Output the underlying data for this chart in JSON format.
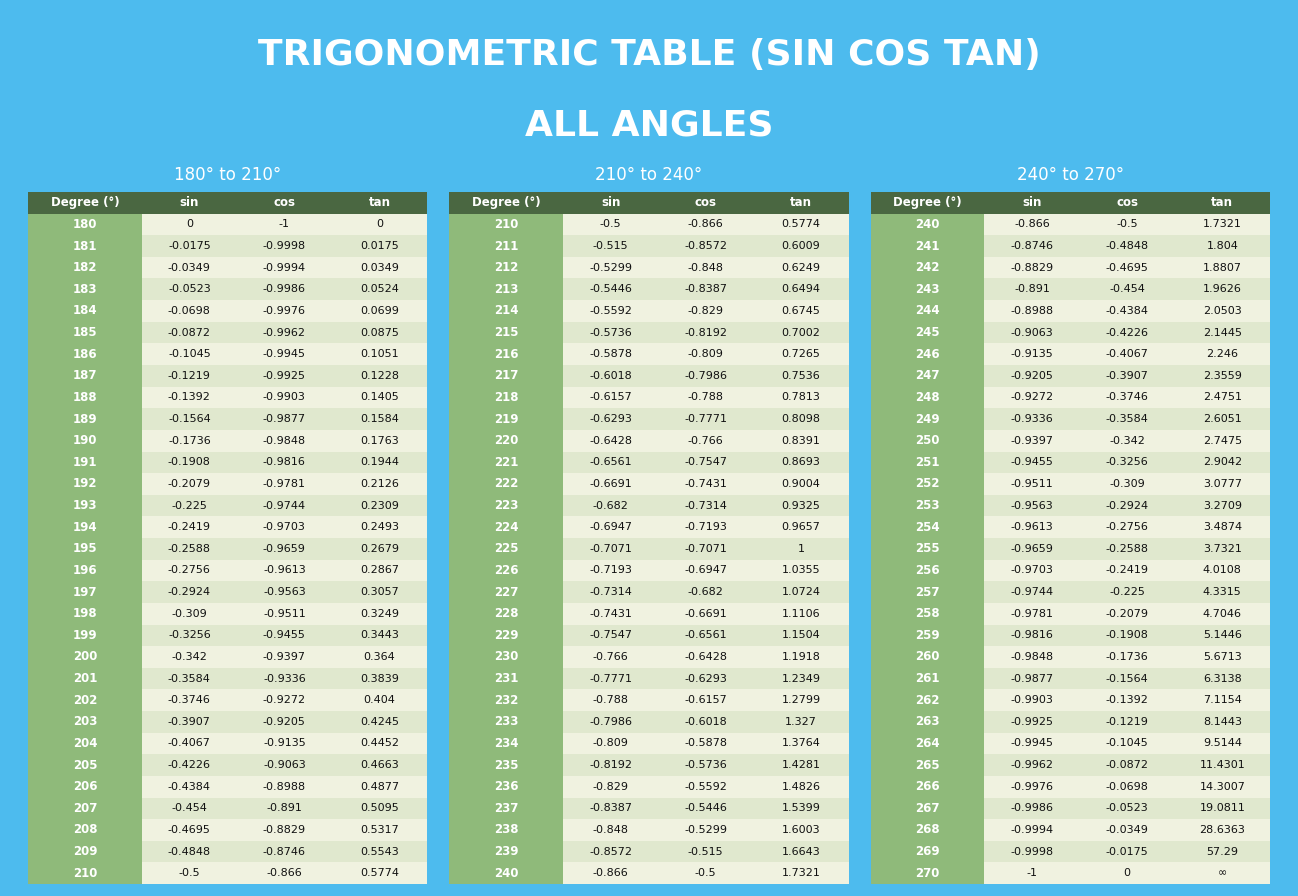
{
  "title_line1": "TRIGONOMETRIC TABLE (SIN COS TAN)",
  "title_line2": "ALL ANGLES",
  "bg_color": "#4DBBEE",
  "header_bg": "#4A6741",
  "col1_bg": "#8FBA7A",
  "row_even_bg": "#F0F2E0",
  "row_odd_bg": "#E0E8CE",
  "tables": [
    {
      "subtitle": "180° to 210°",
      "headers": [
        "Degree (°)",
        "sin",
        "cos",
        "tan"
      ],
      "rows": [
        [
          "180",
          "0",
          "-1",
          "0"
        ],
        [
          "181",
          "-0.0175",
          "-0.9998",
          "0.0175"
        ],
        [
          "182",
          "-0.0349",
          "-0.9994",
          "0.0349"
        ],
        [
          "183",
          "-0.0523",
          "-0.9986",
          "0.0524"
        ],
        [
          "184",
          "-0.0698",
          "-0.9976",
          "0.0699"
        ],
        [
          "185",
          "-0.0872",
          "-0.9962",
          "0.0875"
        ],
        [
          "186",
          "-0.1045",
          "-0.9945",
          "0.1051"
        ],
        [
          "187",
          "-0.1219",
          "-0.9925",
          "0.1228"
        ],
        [
          "188",
          "-0.1392",
          "-0.9903",
          "0.1405"
        ],
        [
          "189",
          "-0.1564",
          "-0.9877",
          "0.1584"
        ],
        [
          "190",
          "-0.1736",
          "-0.9848",
          "0.1763"
        ],
        [
          "191",
          "-0.1908",
          "-0.9816",
          "0.1944"
        ],
        [
          "192",
          "-0.2079",
          "-0.9781",
          "0.2126"
        ],
        [
          "193",
          "-0.225",
          "-0.9744",
          "0.2309"
        ],
        [
          "194",
          "-0.2419",
          "-0.9703",
          "0.2493"
        ],
        [
          "195",
          "-0.2588",
          "-0.9659",
          "0.2679"
        ],
        [
          "196",
          "-0.2756",
          "-0.9613",
          "0.2867"
        ],
        [
          "197",
          "-0.2924",
          "-0.9563",
          "0.3057"
        ],
        [
          "198",
          "-0.309",
          "-0.9511",
          "0.3249"
        ],
        [
          "199",
          "-0.3256",
          "-0.9455",
          "0.3443"
        ],
        [
          "200",
          "-0.342",
          "-0.9397",
          "0.364"
        ],
        [
          "201",
          "-0.3584",
          "-0.9336",
          "0.3839"
        ],
        [
          "202",
          "-0.3746",
          "-0.9272",
          "0.404"
        ],
        [
          "203",
          "-0.3907",
          "-0.9205",
          "0.4245"
        ],
        [
          "204",
          "-0.4067",
          "-0.9135",
          "0.4452"
        ],
        [
          "205",
          "-0.4226",
          "-0.9063",
          "0.4663"
        ],
        [
          "206",
          "-0.4384",
          "-0.8988",
          "0.4877"
        ],
        [
          "207",
          "-0.454",
          "-0.891",
          "0.5095"
        ],
        [
          "208",
          "-0.4695",
          "-0.8829",
          "0.5317"
        ],
        [
          "209",
          "-0.4848",
          "-0.8746",
          "0.5543"
        ],
        [
          "210",
          "-0.5",
          "-0.866",
          "0.5774"
        ]
      ]
    },
    {
      "subtitle": "210° to 240°",
      "headers": [
        "Degree (°)",
        "sin",
        "cos",
        "tan"
      ],
      "rows": [
        [
          "210",
          "-0.5",
          "-0.866",
          "0.5774"
        ],
        [
          "211",
          "-0.515",
          "-0.8572",
          "0.6009"
        ],
        [
          "212",
          "-0.5299",
          "-0.848",
          "0.6249"
        ],
        [
          "213",
          "-0.5446",
          "-0.8387",
          "0.6494"
        ],
        [
          "214",
          "-0.5592",
          "-0.829",
          "0.6745"
        ],
        [
          "215",
          "-0.5736",
          "-0.8192",
          "0.7002"
        ],
        [
          "216",
          "-0.5878",
          "-0.809",
          "0.7265"
        ],
        [
          "217",
          "-0.6018",
          "-0.7986",
          "0.7536"
        ],
        [
          "218",
          "-0.6157",
          "-0.788",
          "0.7813"
        ],
        [
          "219",
          "-0.6293",
          "-0.7771",
          "0.8098"
        ],
        [
          "220",
          "-0.6428",
          "-0.766",
          "0.8391"
        ],
        [
          "221",
          "-0.6561",
          "-0.7547",
          "0.8693"
        ],
        [
          "222",
          "-0.6691",
          "-0.7431",
          "0.9004"
        ],
        [
          "223",
          "-0.682",
          "-0.7314",
          "0.9325"
        ],
        [
          "224",
          "-0.6947",
          "-0.7193",
          "0.9657"
        ],
        [
          "225",
          "-0.7071",
          "-0.7071",
          "1"
        ],
        [
          "226",
          "-0.7193",
          "-0.6947",
          "1.0355"
        ],
        [
          "227",
          "-0.7314",
          "-0.682",
          "1.0724"
        ],
        [
          "228",
          "-0.7431",
          "-0.6691",
          "1.1106"
        ],
        [
          "229",
          "-0.7547",
          "-0.6561",
          "1.1504"
        ],
        [
          "230",
          "-0.766",
          "-0.6428",
          "1.1918"
        ],
        [
          "231",
          "-0.7771",
          "-0.6293",
          "1.2349"
        ],
        [
          "232",
          "-0.788",
          "-0.6157",
          "1.2799"
        ],
        [
          "233",
          "-0.7986",
          "-0.6018",
          "1.327"
        ],
        [
          "234",
          "-0.809",
          "-0.5878",
          "1.3764"
        ],
        [
          "235",
          "-0.8192",
          "-0.5736",
          "1.4281"
        ],
        [
          "236",
          "-0.829",
          "-0.5592",
          "1.4826"
        ],
        [
          "237",
          "-0.8387",
          "-0.5446",
          "1.5399"
        ],
        [
          "238",
          "-0.848",
          "-0.5299",
          "1.6003"
        ],
        [
          "239",
          "-0.8572",
          "-0.515",
          "1.6643"
        ],
        [
          "240",
          "-0.866",
          "-0.5",
          "1.7321"
        ]
      ]
    },
    {
      "subtitle": "240° to 270°",
      "headers": [
        "Degree (°)",
        "sin",
        "cos",
        "tan"
      ],
      "rows": [
        [
          "240",
          "-0.866",
          "-0.5",
          "1.7321"
        ],
        [
          "241",
          "-0.8746",
          "-0.4848",
          "1.804"
        ],
        [
          "242",
          "-0.8829",
          "-0.4695",
          "1.8807"
        ],
        [
          "243",
          "-0.891",
          "-0.454",
          "1.9626"
        ],
        [
          "244",
          "-0.8988",
          "-0.4384",
          "2.0503"
        ],
        [
          "245",
          "-0.9063",
          "-0.4226",
          "2.1445"
        ],
        [
          "246",
          "-0.9135",
          "-0.4067",
          "2.246"
        ],
        [
          "247",
          "-0.9205",
          "-0.3907",
          "2.3559"
        ],
        [
          "248",
          "-0.9272",
          "-0.3746",
          "2.4751"
        ],
        [
          "249",
          "-0.9336",
          "-0.3584",
          "2.6051"
        ],
        [
          "250",
          "-0.9397",
          "-0.342",
          "2.7475"
        ],
        [
          "251",
          "-0.9455",
          "-0.3256",
          "2.9042"
        ],
        [
          "252",
          "-0.9511",
          "-0.309",
          "3.0777"
        ],
        [
          "253",
          "-0.9563",
          "-0.2924",
          "3.2709"
        ],
        [
          "254",
          "-0.9613",
          "-0.2756",
          "3.4874"
        ],
        [
          "255",
          "-0.9659",
          "-0.2588",
          "3.7321"
        ],
        [
          "256",
          "-0.9703",
          "-0.2419",
          "4.0108"
        ],
        [
          "257",
          "-0.9744",
          "-0.225",
          "4.3315"
        ],
        [
          "258",
          "-0.9781",
          "-0.2079",
          "4.7046"
        ],
        [
          "259",
          "-0.9816",
          "-0.1908",
          "5.1446"
        ],
        [
          "260",
          "-0.9848",
          "-0.1736",
          "5.6713"
        ],
        [
          "261",
          "-0.9877",
          "-0.1564",
          "6.3138"
        ],
        [
          "262",
          "-0.9903",
          "-0.1392",
          "7.1154"
        ],
        [
          "263",
          "-0.9925",
          "-0.1219",
          "8.1443"
        ],
        [
          "264",
          "-0.9945",
          "-0.1045",
          "9.5144"
        ],
        [
          "265",
          "-0.9962",
          "-0.0872",
          "11.4301"
        ],
        [
          "266",
          "-0.9976",
          "-0.0698",
          "14.3007"
        ],
        [
          "267",
          "-0.9986",
          "-0.0523",
          "19.0811"
        ],
        [
          "268",
          "-0.9994",
          "-0.0349",
          "28.6363"
        ],
        [
          "269",
          "-0.9998",
          "-0.0175",
          "57.29"
        ],
        [
          "270",
          "-1",
          "0",
          "∞"
        ]
      ]
    }
  ]
}
